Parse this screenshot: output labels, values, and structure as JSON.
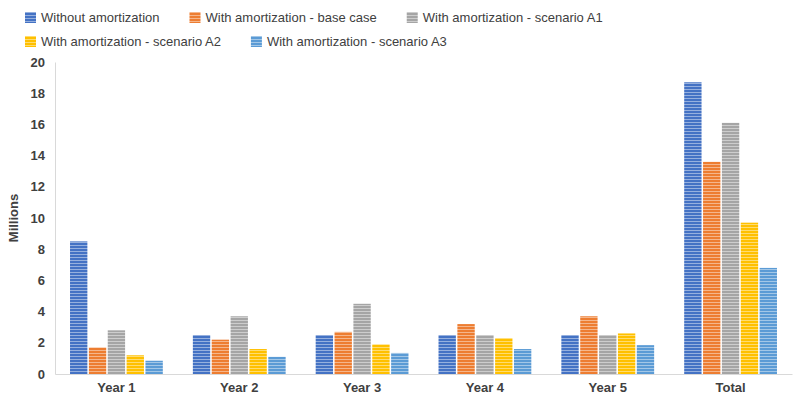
{
  "chart_data": {
    "type": "bar",
    "y_label": "Millions",
    "categories": [
      "Year 1",
      "Year 2",
      "Year 3",
      "Year 4",
      "Year 5",
      "Total"
    ],
    "series": [
      {
        "name": "Without amortization",
        "color": "#4472c4",
        "values": [
          8.5,
          2.5,
          2.5,
          2.5,
          2.5,
          18.7
        ]
      },
      {
        "name": "With amortization - base case",
        "color": "#ed7d31",
        "values": [
          1.7,
          2.2,
          2.7,
          3.2,
          3.7,
          13.6
        ]
      },
      {
        "name": "With amortization - scenario A1",
        "color": "#a5a5a5",
        "values": [
          2.8,
          3.7,
          4.5,
          2.5,
          2.5,
          16.1
        ]
      },
      {
        "name": "With amortization - scenario A2",
        "color": "#ffc000",
        "values": [
          1.2,
          1.6,
          1.9,
          2.3,
          2.6,
          9.7
        ]
      },
      {
        "name": "With amortization - scenario A3",
        "color": "#5b9bd5",
        "values": [
          0.85,
          1.1,
          1.35,
          1.6,
          1.85,
          6.8
        ]
      }
    ],
    "ylim": [
      0,
      20
    ],
    "yticks": [
      0,
      2,
      4,
      6,
      8,
      10,
      12,
      14,
      16,
      18,
      20
    ],
    "grid": false,
    "legend": "top"
  }
}
